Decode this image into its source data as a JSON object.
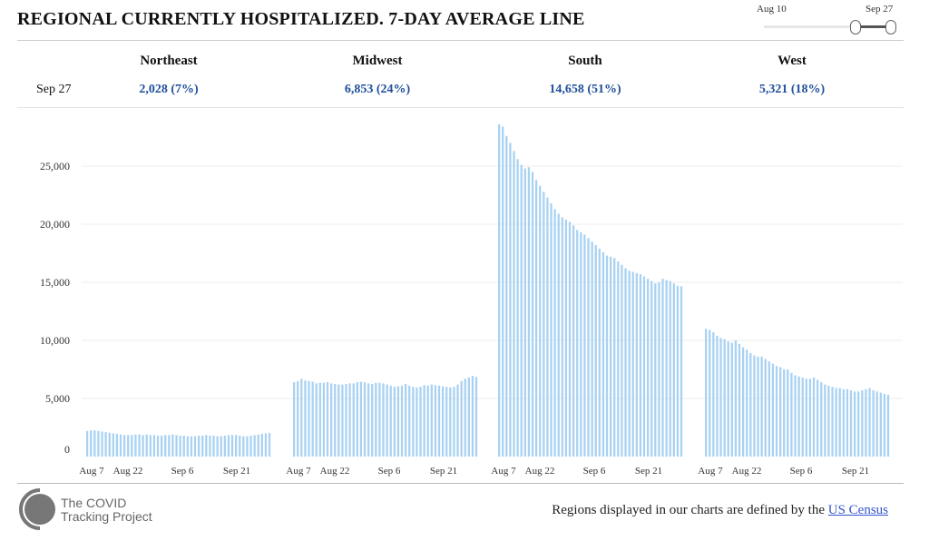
{
  "title": "REGIONAL CURRENTLY HOSPITALIZED. 7-DAY AVERAGE LINE",
  "slider": {
    "start_label": "Aug 10",
    "end_label": "Sep 27"
  },
  "summary": {
    "date": "Sep 27",
    "regions": [
      {
        "name": "Northeast",
        "value": "2,028 (7%)"
      },
      {
        "name": "Midwest",
        "value": "6,853 (24%)"
      },
      {
        "name": "South",
        "value": "14,658 (51%)"
      },
      {
        "name": "West",
        "value": "5,321 (18%)"
      }
    ]
  },
  "footer": {
    "logo_line1": "The COVID",
    "logo_line2": "Tracking Project",
    "note": "Regions displayed in our charts are defined by the",
    "link": "US Census"
  },
  "colors": {
    "bar": "#a8d1f2",
    "value": "#1f4e9a"
  },
  "chart_data": {
    "type": "bar",
    "ylim": [
      0,
      28000
    ],
    "yticks": [
      0,
      5000,
      10000,
      15000,
      20000,
      25000
    ],
    "ytick_labels": [
      "0",
      "5,000",
      "10,000",
      "15,000",
      "20,000",
      "25,000"
    ],
    "xtick_labels": [
      "Aug 7",
      "Aug 22",
      "Sep 6",
      "Sep 21"
    ],
    "series": [
      {
        "name": "Northeast",
        "values": [
          2200,
          2250,
          2250,
          2200,
          2150,
          2100,
          2050,
          2000,
          1950,
          1900,
          1850,
          1850,
          1850,
          1900,
          1900,
          1850,
          1900,
          1850,
          1850,
          1800,
          1800,
          1850,
          1850,
          1900,
          1850,
          1800,
          1800,
          1750,
          1750,
          1750,
          1800,
          1800,
          1850,
          1800,
          1800,
          1750,
          1750,
          1800,
          1850,
          1850,
          1850,
          1800,
          1750,
          1750,
          1800,
          1850,
          1900,
          1950,
          2000,
          2028
        ]
      },
      {
        "name": "Midwest",
        "values": [
          6400,
          6500,
          6700,
          6550,
          6500,
          6450,
          6300,
          6350,
          6350,
          6400,
          6300,
          6250,
          6200,
          6200,
          6250,
          6300,
          6300,
          6400,
          6450,
          6400,
          6300,
          6250,
          6350,
          6350,
          6300,
          6200,
          6100,
          6000,
          6050,
          6100,
          6250,
          6100,
          6000,
          5950,
          6000,
          6150,
          6100,
          6200,
          6150,
          6100,
          6050,
          6000,
          5950,
          6000,
          6200,
          6500,
          6700,
          6800,
          6950,
          6853
        ]
      },
      {
        "name": "South",
        "values": [
          28600,
          28400,
          27600,
          27000,
          26300,
          25600,
          25100,
          24800,
          24900,
          24500,
          23800,
          23300,
          22800,
          22300,
          21800,
          21300,
          20900,
          20600,
          20400,
          20200,
          19900,
          19500,
          19300,
          19100,
          18800,
          18500,
          18200,
          17900,
          17600,
          17300,
          17200,
          17100,
          16800,
          16500,
          16200,
          16000,
          15900,
          15800,
          15700,
          15500,
          15300,
          15100,
          14900,
          15000,
          15300,
          15200,
          15100,
          14900,
          14700,
          14658
        ]
      },
      {
        "name": "West",
        "values": [
          11000,
          10900,
          10700,
          10400,
          10200,
          10100,
          9900,
          9800,
          10000,
          9700,
          9400,
          9200,
          8900,
          8700,
          8600,
          8600,
          8400,
          8200,
          8000,
          7800,
          7700,
          7500,
          7500,
          7200,
          7000,
          6900,
          6800,
          6700,
          6700,
          6800,
          6600,
          6400,
          6200,
          6100,
          6000,
          5900,
          5900,
          5800,
          5800,
          5700,
          5600,
          5600,
          5700,
          5800,
          5900,
          5700,
          5600,
          5500,
          5400,
          5321
        ]
      }
    ]
  }
}
